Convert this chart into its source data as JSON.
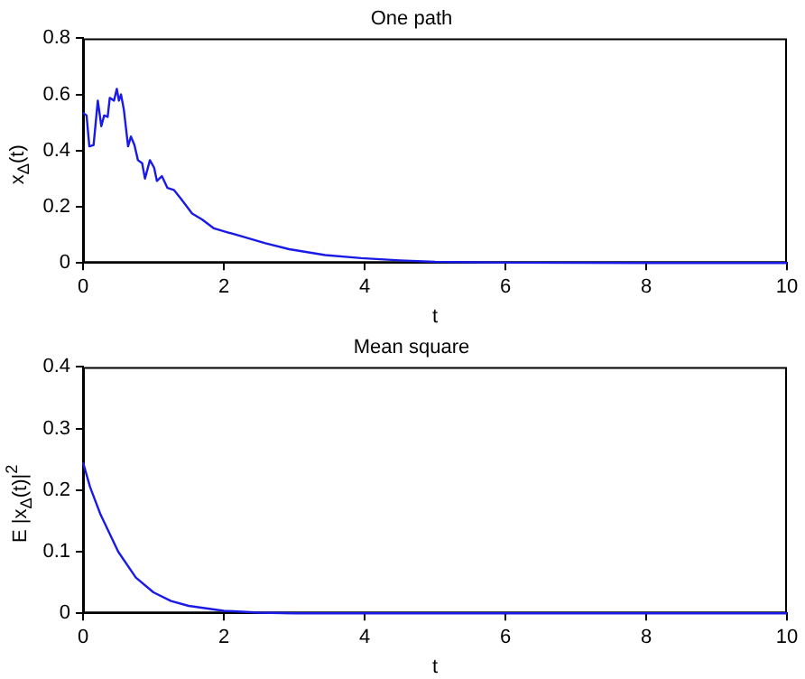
{
  "chart_data": [
    {
      "type": "line",
      "title": "One path",
      "xlabel": "t",
      "ylabel": "x$_{Δ}$(t)",
      "xlim": [
        0,
        10
      ],
      "xticks": [
        0,
        2,
        4,
        6,
        8,
        10
      ],
      "ylim": [
        0,
        0.8
      ],
      "yticks": [
        0,
        0.2,
        0.4,
        0.6,
        0.8
      ],
      "marker": "none",
      "series": [
        {
          "color": "#1a1ae6",
          "x": [
            0,
            0.05,
            0.09,
            0.15,
            0.21,
            0.26,
            0.3,
            0.35,
            0.38,
            0.44,
            0.48,
            0.51,
            0.54,
            0.58,
            0.64,
            0.68,
            0.73,
            0.78,
            0.84,
            0.88,
            0.95,
            1.01,
            1.05,
            1.12,
            1.2,
            1.29,
            1.39,
            1.55,
            1.69,
            1.86,
            2.01,
            2.25,
            2.59,
            2.93,
            3.44,
            3.95,
            4.5,
            5,
            6,
            8,
            10
          ],
          "values": [
            0.535,
            0.525,
            0.415,
            0.42,
            0.578,
            0.487,
            0.525,
            0.52,
            0.588,
            0.578,
            0.62,
            0.578,
            0.6,
            0.546,
            0.415,
            0.45,
            0.42,
            0.366,
            0.355,
            0.3,
            0.366,
            0.339,
            0.292,
            0.309,
            0.267,
            0.26,
            0.229,
            0.176,
            0.155,
            0.123,
            0.112,
            0.095,
            0.07,
            0.049,
            0.028,
            0.017,
            0.009,
            0.004,
            0.001,
            0,
            0
          ]
        }
      ]
    },
    {
      "type": "line",
      "title": "Mean square",
      "xlabel": "t",
      "ylabel": "E |x$_{Δ}$(t)|$^{2}$",
      "xlim": [
        0,
        10
      ],
      "xticks": [
        0,
        2,
        4,
        6,
        8,
        10
      ],
      "ylim": [
        0,
        0.4
      ],
      "yticks": [
        0,
        0.1,
        0.2,
        0.3,
        0.4
      ],
      "marker": "none",
      "series": [
        {
          "color": "#1a1ae6",
          "x": [
            0,
            0.1,
            0.25,
            0.5,
            0.75,
            1,
            1.25,
            1.5,
            2,
            2.5,
            3,
            10
          ],
          "values": [
            0.245,
            0.205,
            0.16,
            0.1,
            0.058,
            0.034,
            0.02,
            0.012,
            0.004,
            0.001,
            0,
            0
          ]
        }
      ]
    }
  ]
}
